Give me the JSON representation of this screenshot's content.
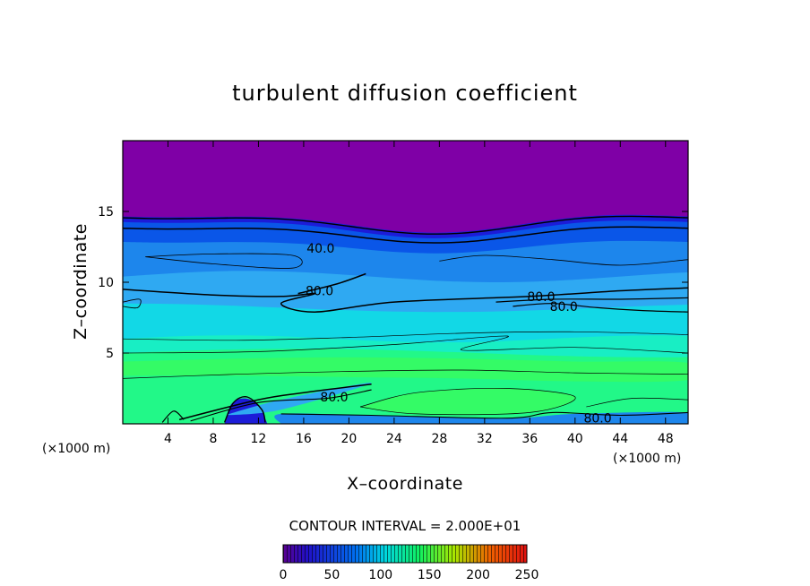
{
  "chart_data": {
    "type": "contour",
    "title": "turbulent diffusion coefficient",
    "xlabel": "X–coordinate",
    "ylabel": "Z–coordinate",
    "x_unit": "(×1000 m)",
    "z_unit": "(×1000 m)",
    "xlim": [
      0,
      50
    ],
    "ylim": [
      0,
      20
    ],
    "x_ticks": [
      4,
      8,
      12,
      16,
      20,
      24,
      28,
      32,
      36,
      40,
      44,
      48
    ],
    "y_ticks": [
      5,
      10,
      15
    ],
    "contour_interval_text": "CONTOUR INTERVAL = 2.000E+01",
    "contour_labels": [
      {
        "text": "40.0",
        "x": 17.5,
        "z": 12.4
      },
      {
        "text": "80.0",
        "x": 17.4,
        "z": 9.4
      },
      {
        "text": "80.0",
        "x": 37.0,
        "z": 9.0
      },
      {
        "text": "80.0",
        "x": 39.0,
        "z": 8.3
      },
      {
        "text": "80.0",
        "x": 18.7,
        "z": 1.9
      },
      {
        "text": "80.0",
        "x": 42.0,
        "z": 0.4
      }
    ],
    "colorbar": {
      "ticks": [
        "0",
        "50",
        "100",
        "150",
        "200",
        "250"
      ],
      "colors": [
        "#7a00a8",
        "#1a10d8",
        "#0070f0",
        "#00e0e0",
        "#10f060",
        "#c0e000",
        "#f06000",
        "#e01010"
      ]
    },
    "field_colors": {
      "purple": "#7f00a6",
      "deep_blue": "#1c1cd8",
      "blue": "#0a56e8",
      "azure": "#1d86ec",
      "sky": "#2fa9f2",
      "cyan": "#12d8e6",
      "aqua": "#18eec4",
      "green": "#22f888",
      "lime": "#34fb66"
    }
  }
}
